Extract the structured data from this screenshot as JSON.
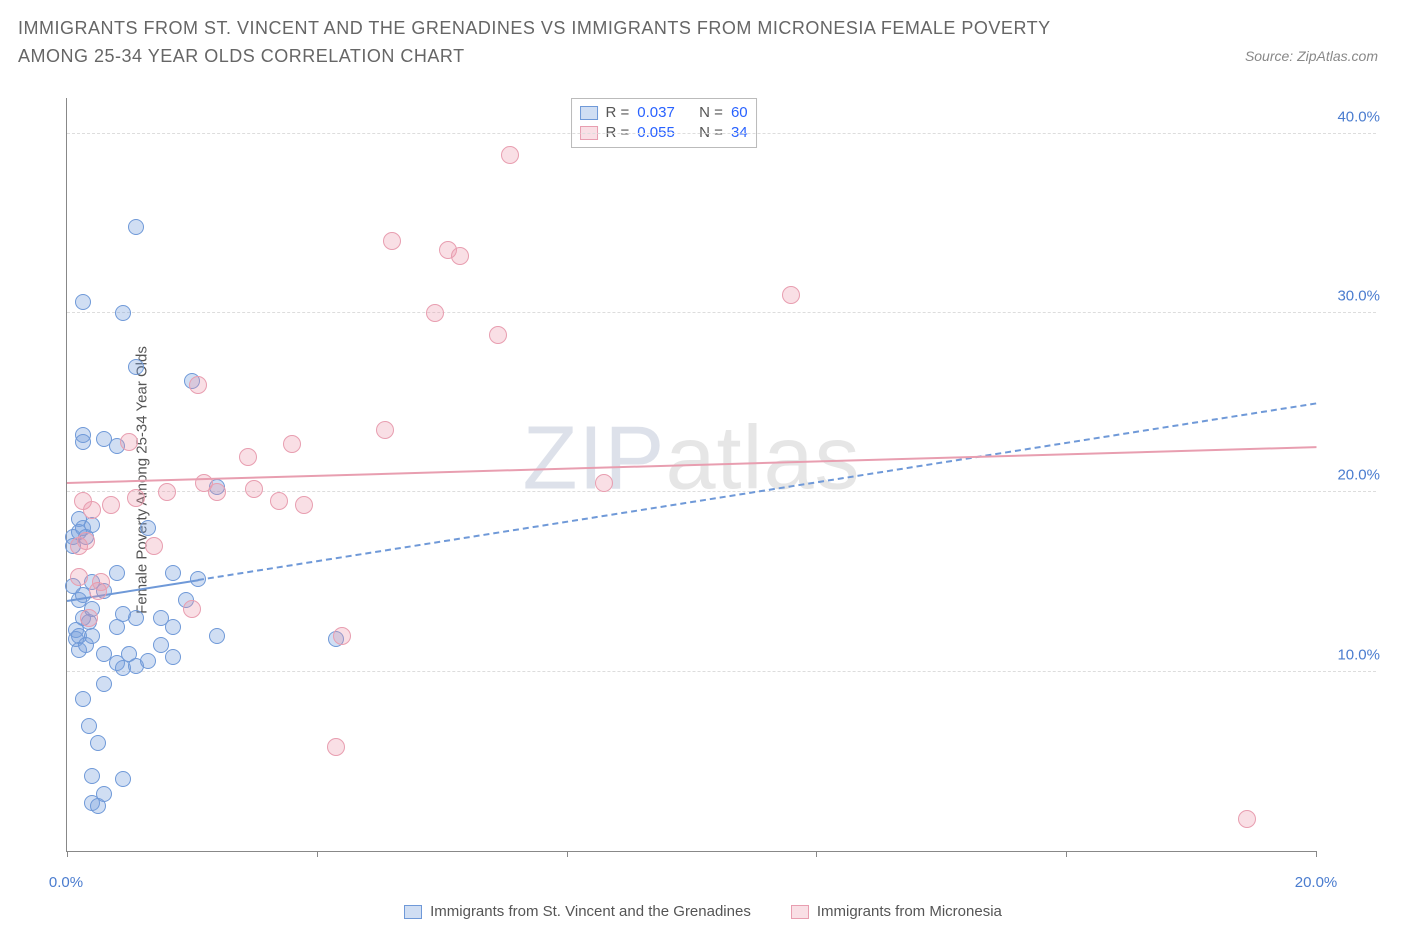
{
  "title": "IMMIGRANTS FROM ST. VINCENT AND THE GRENADINES VS IMMIGRANTS FROM MICRONESIA FEMALE POVERTY AMONG 25-34 YEAR OLDS CORRELATION CHART",
  "source_prefix": "Source: ",
  "source_name": "ZipAtlas.com",
  "ylabel": "Female Poverty Among 25-34 Year Olds",
  "watermark_left": "ZIP",
  "watermark_right": "atlas",
  "axes": {
    "xlim": [
      0,
      20
    ],
    "ylim": [
      0,
      42
    ],
    "xticks": [
      0,
      4,
      8,
      12,
      16,
      20
    ],
    "xtick_labels_shown": {
      "0": "0.0%",
      "20": "20.0%"
    },
    "yticks": [
      10,
      20,
      30,
      40
    ],
    "ytick_labels": [
      "10.0%",
      "20.0%",
      "30.0%",
      "40.0%"
    ],
    "grid_color": "#dddddd",
    "axis_color": "#888888",
    "label_color": "#4a7ccf",
    "label_fontsize": 15
  },
  "series": [
    {
      "name": "Immigrants from St. Vincent and the Grenadines",
      "fill": "rgba(120,160,220,0.35)",
      "stroke": "#6f99d8",
      "marker_size": 16,
      "trend": {
        "y_at_xmin": 14.0,
        "y_at_xmax": 25.0,
        "solid_until_x": 2.1
      },
      "stats": {
        "R": "0.037",
        "N": "60"
      },
      "points": [
        [
          0.1,
          17.5
        ],
        [
          0.1,
          17.0
        ],
        [
          0.1,
          14.8
        ],
        [
          0.15,
          12.3
        ],
        [
          0.15,
          11.8
        ],
        [
          0.2,
          18.5
        ],
        [
          0.2,
          17.8
        ],
        [
          0.2,
          14.0
        ],
        [
          0.2,
          12.0
        ],
        [
          0.2,
          11.2
        ],
        [
          0.25,
          30.6
        ],
        [
          0.25,
          23.2
        ],
        [
          0.25,
          22.8
        ],
        [
          0.25,
          18.0
        ],
        [
          0.25,
          14.3
        ],
        [
          0.25,
          13.0
        ],
        [
          0.25,
          8.5
        ],
        [
          0.3,
          17.5
        ],
        [
          0.3,
          11.5
        ],
        [
          0.35,
          12.8
        ],
        [
          0.35,
          7.0
        ],
        [
          0.4,
          18.2
        ],
        [
          0.4,
          15.0
        ],
        [
          0.4,
          13.5
        ],
        [
          0.4,
          12.0
        ],
        [
          0.4,
          4.2
        ],
        [
          0.4,
          2.7
        ],
        [
          0.5,
          6.0
        ],
        [
          0.5,
          2.5
        ],
        [
          0.6,
          23.0
        ],
        [
          0.6,
          14.5
        ],
        [
          0.6,
          11.0
        ],
        [
          0.6,
          9.3
        ],
        [
          0.6,
          3.2
        ],
        [
          0.8,
          22.6
        ],
        [
          0.8,
          15.5
        ],
        [
          0.8,
          12.5
        ],
        [
          0.8,
          10.5
        ],
        [
          0.9,
          30.0
        ],
        [
          0.9,
          13.2
        ],
        [
          0.9,
          10.2
        ],
        [
          0.9,
          4.0
        ],
        [
          1.0,
          11.0
        ],
        [
          1.1,
          34.8
        ],
        [
          1.1,
          27.0
        ],
        [
          1.1,
          13.0
        ],
        [
          1.1,
          10.3
        ],
        [
          1.3,
          18.0
        ],
        [
          1.3,
          10.6
        ],
        [
          1.5,
          13.0
        ],
        [
          1.5,
          11.5
        ],
        [
          1.7,
          15.5
        ],
        [
          1.7,
          12.5
        ],
        [
          1.7,
          10.8
        ],
        [
          1.9,
          14.0
        ],
        [
          2.0,
          26.2
        ],
        [
          2.1,
          15.2
        ],
        [
          2.4,
          20.3
        ],
        [
          2.4,
          12.0
        ],
        [
          4.3,
          11.8
        ]
      ]
    },
    {
      "name": "Immigrants from Micronesia",
      "fill": "rgba(235,150,170,0.30)",
      "stroke": "#e89eb0",
      "marker_size": 18,
      "trend": {
        "y_at_xmin": 20.6,
        "y_at_xmax": 22.6,
        "solid_until_x": 20
      },
      "stats": {
        "R": "0.055",
        "N": "34"
      },
      "points": [
        [
          0.2,
          17.0
        ],
        [
          0.2,
          15.3
        ],
        [
          0.25,
          19.5
        ],
        [
          0.3,
          17.3
        ],
        [
          0.35,
          13.0
        ],
        [
          0.4,
          19.0
        ],
        [
          0.5,
          14.5
        ],
        [
          0.55,
          15.0
        ],
        [
          0.7,
          19.3
        ],
        [
          1.0,
          22.8
        ],
        [
          1.1,
          19.7
        ],
        [
          1.4,
          17.0
        ],
        [
          1.6,
          20.0
        ],
        [
          2.0,
          13.5
        ],
        [
          2.1,
          26.0
        ],
        [
          2.2,
          20.5
        ],
        [
          2.4,
          20.0
        ],
        [
          2.9,
          22.0
        ],
        [
          3.0,
          20.2
        ],
        [
          3.4,
          19.5
        ],
        [
          3.6,
          22.7
        ],
        [
          3.8,
          19.3
        ],
        [
          4.3,
          5.8
        ],
        [
          4.4,
          12.0
        ],
        [
          5.1,
          23.5
        ],
        [
          5.2,
          34.0
        ],
        [
          5.9,
          30.0
        ],
        [
          6.1,
          33.5
        ],
        [
          6.3,
          33.2
        ],
        [
          6.9,
          28.8
        ],
        [
          7.1,
          38.8
        ],
        [
          8.6,
          20.5
        ],
        [
          11.6,
          31.0
        ],
        [
          18.9,
          1.8
        ]
      ]
    }
  ],
  "stats_legend_labels": {
    "R": "R =",
    "N": "N ="
  },
  "bottom_legend_order": [
    0,
    1
  ]
}
